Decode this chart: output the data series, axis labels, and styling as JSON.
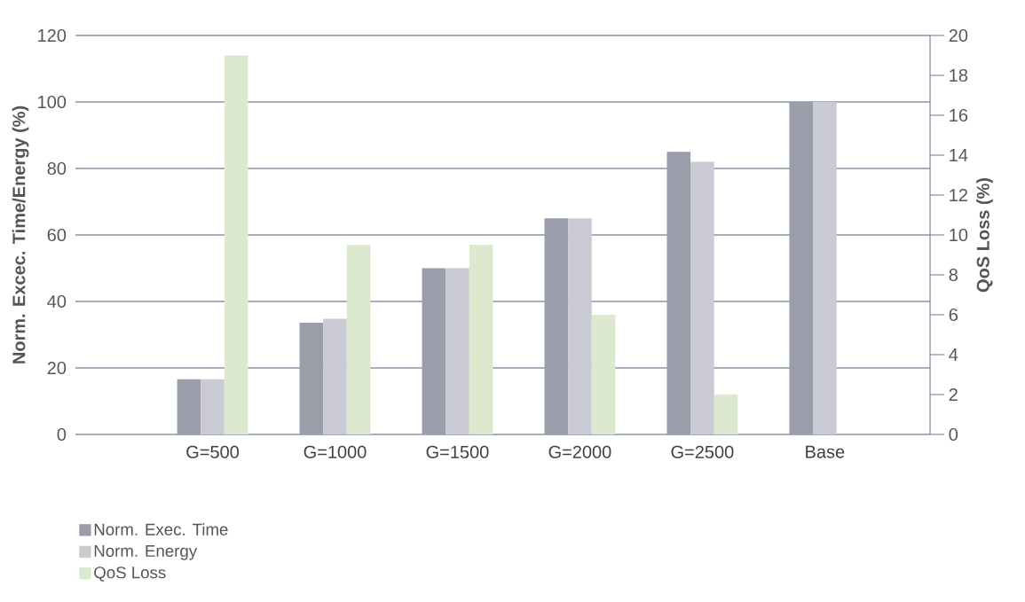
{
  "chart_data": {
    "type": "bar",
    "ylabel": "Norm. Excec. Time/Energy (%)",
    "y2label": "QoS Loss (%)",
    "categories": [
      "G=500",
      "G=1000",
      "G=1500",
      "G=2000",
      "G=2500",
      "Base"
    ],
    "series": [
      {
        "name": "Norm. Exec. Time",
        "color": "#9a9eab",
        "values": [
          16.6,
          33.6,
          50,
          65,
          85,
          100
        ]
      },
      {
        "name": "Norm. Energy",
        "color": "#cacad4",
        "values": [
          16.6,
          34.8,
          50,
          65,
          82,
          100
        ]
      },
      {
        "name": "QoS Loss",
        "color": "#dde9cf",
        "axis": "y2",
        "values": [
          19,
          9.5,
          9.5,
          6,
          2,
          null
        ]
      }
    ],
    "ylim": [
      0,
      120
    ],
    "yticks": [
      0,
      20,
      40,
      60,
      80,
      100,
      120
    ],
    "y2lim": [
      0,
      20
    ],
    "y2ticks": [
      0,
      2,
      4,
      6,
      8,
      10,
      12,
      14,
      16,
      18,
      20
    ],
    "grid": "y",
    "legend": "bottom left"
  }
}
